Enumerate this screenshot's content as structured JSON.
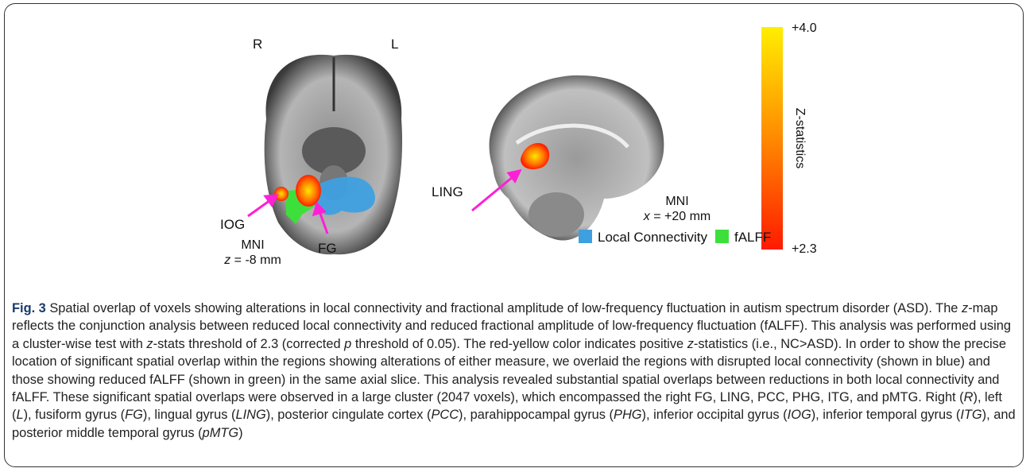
{
  "figure": {
    "axial": {
      "right": "R",
      "left": "L",
      "ioG": "IOG",
      "fg": "FG",
      "mni": "MNI",
      "coord": [
        {
          "text": "z",
          "italic": true
        },
        {
          "text": " = -8 mm"
        }
      ]
    },
    "sagittal": {
      "ling": "LING",
      "mni": "MNI",
      "coord": [
        {
          "text": "x",
          "italic": true
        },
        {
          "text": " = +20 mm"
        }
      ]
    },
    "colorbar": {
      "max": "+4.0",
      "min": "+2.3",
      "label": "Z-statistics"
    },
    "legend": [
      {
        "name": "Local Connectivity",
        "color": "#3ea0e0"
      },
      {
        "name": "fALFF",
        "color": "#3de03a"
      }
    ]
  },
  "caption": {
    "runs": [
      {
        "text": "Fig. 3",
        "bold": true
      },
      {
        "text": " Spatial overlap of voxels showing alterations in local connectivity and fractional amplitude of low-frequency fluctuation in autism spectrum disorder (ASD). The "
      },
      {
        "text": "z",
        "italic": true
      },
      {
        "text": "-map reflects the conjunction analysis between reduced local connectivity and reduced fractional amplitude of low-frequency fluctuation (fALFF). This analysis was performed using a cluster-wise test with "
      },
      {
        "text": "z",
        "italic": true
      },
      {
        "text": "-stats threshold of 2.3 (corrected "
      },
      {
        "text": "p",
        "italic": true
      },
      {
        "text": " threshold of 0.05). The red-yellow color indicates positive "
      },
      {
        "text": "z",
        "italic": true
      },
      {
        "text": "-statistics (i.e., NC>ASD). In order to show the precise location of significant spatial overlap within the regions showing alterations of either measure, we overlaid the regions with disrupted local connectivity (shown in blue) and those showing reduced fALFF (shown in green) in the same axial slice. This analysis revealed substantial spatial overlaps between reductions in both local connectivity and fALFF. These significant spatial overlaps were observed in a large cluster (2047 voxels), which encompassed the right FG, LING, PCC, PHG, ITG, and pMTG. Right ("
      },
      {
        "text": "R",
        "italic": true
      },
      {
        "text": "), left ("
      },
      {
        "text": "L",
        "italic": true
      },
      {
        "text": "), fusiform gyrus ("
      },
      {
        "text": "FG",
        "italic": true
      },
      {
        "text": "), lingual gyrus ("
      },
      {
        "text": "LING",
        "italic": true
      },
      {
        "text": "), posterior cingulate cortex ("
      },
      {
        "text": "PCC",
        "italic": true
      },
      {
        "text": "), parahippocampal gyrus ("
      },
      {
        "text": "PHG",
        "italic": true
      },
      {
        "text": "), inferior occipital gyrus ("
      },
      {
        "text": "IOG",
        "italic": true
      },
      {
        "text": "), inferior temporal gyrus ("
      },
      {
        "text": "ITG",
        "italic": true
      },
      {
        "text": "), and posterior middle temporal gyrus ("
      },
      {
        "text": "pMTG",
        "italic": true
      },
      {
        "text": ")"
      }
    ]
  }
}
